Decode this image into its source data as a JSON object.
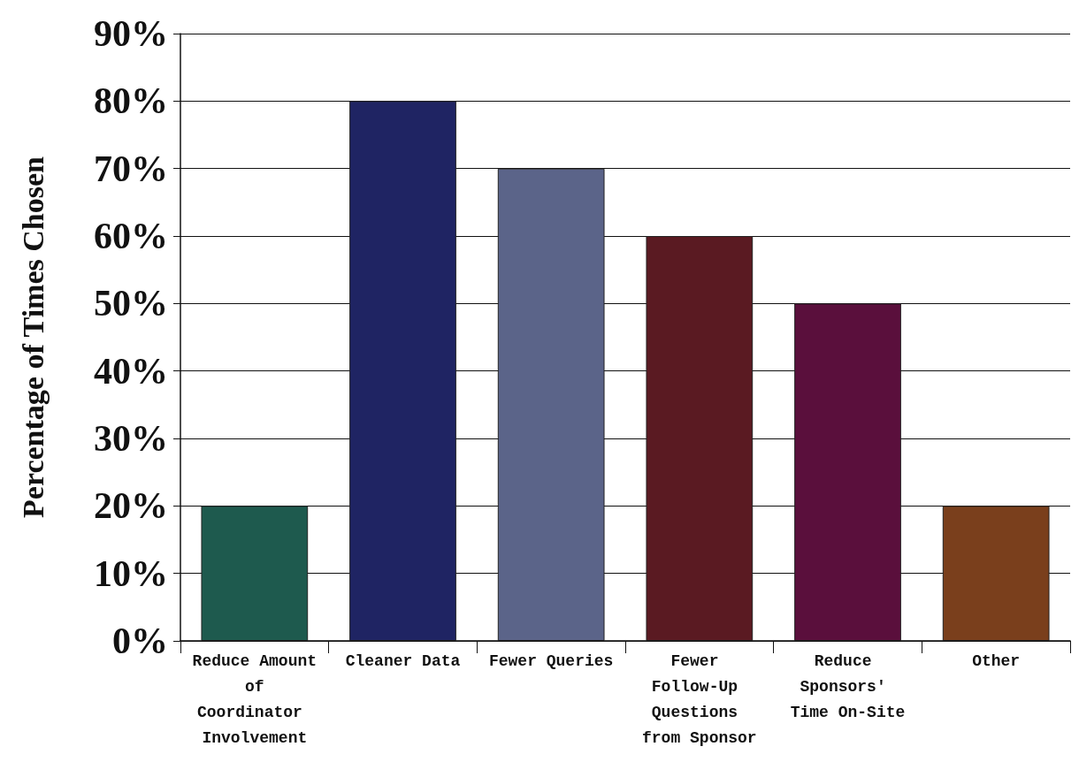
{
  "chart_data": {
    "type": "bar",
    "ylabel": "Percentage of Times Chosen",
    "categories": [
      "Reduce Amount of Coordinator Involvement",
      "Cleaner Data",
      "Fewer Queries",
      "Fewer Follow-Up Questions from Sponsor",
      "Reduce Sponsors' Time On-Site",
      "Other"
    ],
    "values": [
      20,
      80,
      70,
      60,
      50,
      20
    ],
    "colors": [
      "#1e5a4e",
      "#1f2463",
      "#5b6489",
      "#5a1a22",
      "#5a0f3c",
      "#7a3f1c"
    ],
    "ylim": [
      0,
      90
    ],
    "yticks": [
      {
        "value": 0,
        "label": "0%"
      },
      {
        "value": 10,
        "label": "10%"
      },
      {
        "value": 20,
        "label": "20%"
      },
      {
        "value": 30,
        "label": "30%"
      },
      {
        "value": 40,
        "label": "40%"
      },
      {
        "value": 50,
        "label": "50%"
      },
      {
        "value": 60,
        "label": "60%"
      },
      {
        "value": 70,
        "label": "70%"
      },
      {
        "value": 80,
        "label": "80%"
      },
      {
        "value": 90,
        "label": "90%"
      }
    ],
    "grid": "y"
  }
}
